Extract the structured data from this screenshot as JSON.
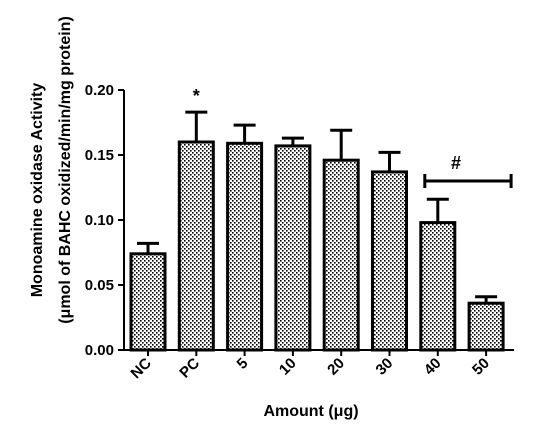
{
  "chart_data": {
    "type": "bar",
    "title": "",
    "ylabel_line1": "Monoamine oxidase Activity",
    "ylabel_line2": "(μmol of BAHC oxidized/min/mg protein)",
    "xlabel": "Amount (μg)",
    "categories": [
      "NC",
      "PC",
      "5",
      "10",
      "20",
      "30",
      "40",
      "50"
    ],
    "values": [
      0.074,
      0.16,
      0.159,
      0.157,
      0.146,
      0.137,
      0.098,
      0.036
    ],
    "errors": [
      0.008,
      0.023,
      0.014,
      0.006,
      0.023,
      0.015,
      0.018,
      0.005
    ],
    "ylim": [
      0,
      0.2
    ],
    "yticks": [
      "0.00",
      "0.05",
      "0.10",
      "0.15",
      "0.20"
    ],
    "ytick_values": [
      0,
      0.05,
      0.1,
      0.15,
      0.2
    ],
    "annotations": {
      "star": {
        "text": "*",
        "category": "PC"
      },
      "hash": {
        "text": "#",
        "from_category": "40",
        "to_category": "50"
      }
    },
    "colors": {
      "bar_fill_dot": "#000000",
      "bar_background": "#ffffff",
      "axis": "#000000"
    },
    "grid": false,
    "legend": "none"
  }
}
